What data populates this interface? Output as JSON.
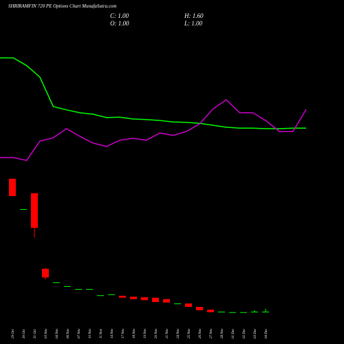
{
  "chart_data": {
    "type": "candlestick",
    "title": "SHRIRAMFIN 720 PE Options Chart MunafaSutra.com",
    "info": {
      "close": "C: 1.00",
      "high": "H: 1.60",
      "open": "O: 1.00",
      "low": "L: 1.00"
    },
    "categories": [
      "29 Oct",
      "30 Oct",
      "31 Oct",
      "03 Nov",
      "04 Nov",
      "06 Nov",
      "07 Nov",
      "10 Nov",
      "11 Nov",
      "14 Nov",
      "17 Nov",
      "18 Nov",
      "19 Nov",
      "20 Nov",
      "21 Nov",
      "24 Nov",
      "25 Nov",
      "26 Nov",
      "27 Nov",
      "28 Nov",
      "01 Dec",
      "02 Dec",
      "03 Dec",
      "04 Dec"
    ],
    "open": [
      28.6,
      22.3,
      25.6,
      9.9,
      7.1,
      6.3,
      5.7,
      5.7,
      4.4,
      4.6,
      4.3,
      4.1,
      4.0,
      3.9,
      3.6,
      2.7,
      2.7,
      2.0,
      1.4,
      1.0,
      0.9,
      0.9,
      1.0,
      1.0
    ],
    "high": [
      28.6,
      22.3,
      25.6,
      10.1,
      7.1,
      6.3,
      5.7,
      5.7,
      4.4,
      4.6,
      4.3,
      4.1,
      4.0,
      3.9,
      3.6,
      2.7,
      2.7,
      2.0,
      1.4,
      1.0,
      0.9,
      0.9,
      1.3,
      1.6
    ],
    "low": [
      25.0,
      22.3,
      16.4,
      7.7,
      7.1,
      6.3,
      5.7,
      5.7,
      4.4,
      4.6,
      3.9,
      3.6,
      3.4,
      3.0,
      2.9,
      2.7,
      2.0,
      1.3,
      0.9,
      1.0,
      0.9,
      0.9,
      1.0,
      1.0
    ],
    "close": [
      25.0,
      22.3,
      18.4,
      8.1,
      7.1,
      6.3,
      5.7,
      5.7,
      4.4,
      4.6,
      3.9,
      3.6,
      3.4,
      3.0,
      2.9,
      2.7,
      2.0,
      1.3,
      0.9,
      1.0,
      0.9,
      0.9,
      1.0,
      1.0
    ],
    "up_color": "#00ff00",
    "down_color": "#ff0000",
    "series": [
      {
        "color": "#00ff00",
        "values": [
          53.7,
          53.7,
          52.1,
          49.7,
          43.6,
          42.9,
          42.3,
          42.0,
          41.3,
          41.4,
          41.0,
          40.9,
          40.7,
          40.4,
          40.3,
          40.1,
          39.7,
          39.3,
          39.1,
          39.1,
          39.0,
          39.0,
          39.1,
          39.1
        ]
      },
      {
        "color": "#cc00cc",
        "values": [
          33.0,
          33.0,
          32.4,
          36.4,
          37.1,
          39.0,
          37.4,
          36.0,
          35.3,
          36.6,
          37.0,
          36.6,
          38.1,
          37.6,
          38.4,
          40.0,
          43.1,
          45.0,
          42.3,
          42.3,
          40.6,
          38.4,
          38.4,
          43.0
        ]
      }
    ],
    "ylim": [
      0,
      60
    ]
  }
}
